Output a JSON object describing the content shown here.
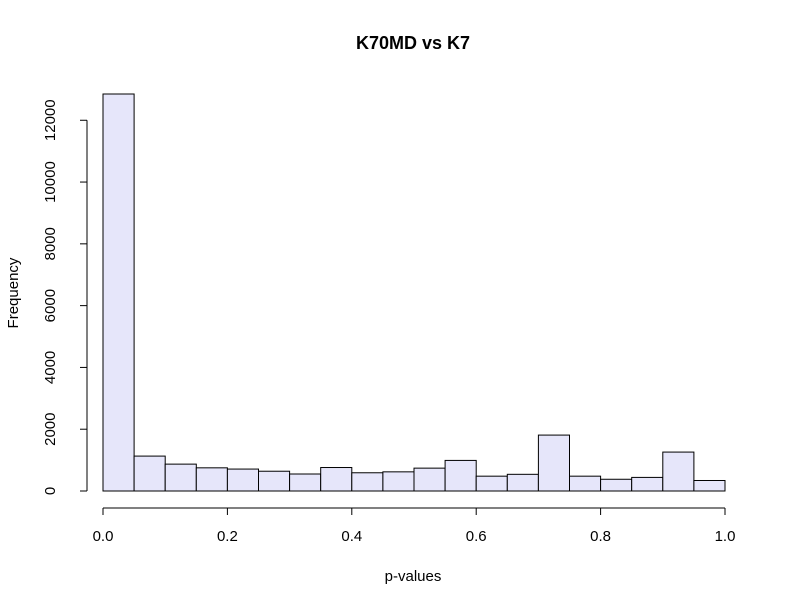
{
  "chart_data": {
    "type": "bar",
    "title": "K70MD vs K7",
    "xlabel": "p-values",
    "ylabel": "Frequency",
    "bin_width": 0.05,
    "x": [
      0.0,
      0.05,
      0.1,
      0.15,
      0.2,
      0.25,
      0.3,
      0.35,
      0.4,
      0.45,
      0.5,
      0.55,
      0.6,
      0.65,
      0.7,
      0.75,
      0.8,
      0.85,
      0.9,
      0.95
    ],
    "values": [
      12850,
      1130,
      870,
      750,
      710,
      640,
      550,
      760,
      590,
      620,
      740,
      990,
      480,
      540,
      1810,
      480,
      380,
      440,
      1260,
      340
    ],
    "xlim": [
      0,
      1
    ],
    "ylim": [
      0,
      12850
    ],
    "xticks": [
      "0.0",
      "0.2",
      "0.4",
      "0.6",
      "0.8",
      "1.0"
    ],
    "yticks": [
      "0",
      "2000",
      "4000",
      "6000",
      "8000",
      "10000",
      "12000"
    ],
    "bar_color": "#e6e6fa",
    "grid": false,
    "legend": "none"
  }
}
